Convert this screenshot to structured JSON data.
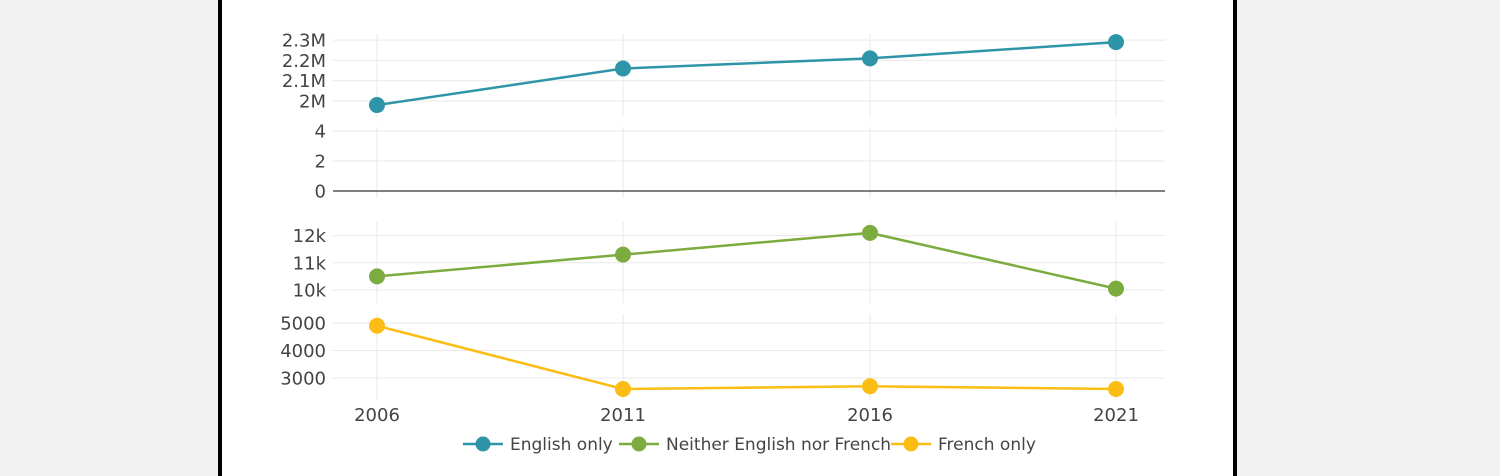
{
  "colors": {
    "english": "#2e95a8",
    "neither": "#7cab3f",
    "french": "#fbbd13",
    "grid": "#e9e9e9",
    "axis_text": "#444444",
    "zero_line": "#333333",
    "background": "#f2f2f2",
    "card": "#ffffff"
  },
  "chart_data": {
    "type": "line",
    "layout": "stacked-panels-shared-x",
    "x": [
      "2006",
      "2011",
      "2016",
      "2021"
    ],
    "grid": true,
    "legend_position": "bottom",
    "panels": [
      {
        "series": "English only",
        "color_key": "english",
        "ylim": [
          1980000,
          2330000
        ],
        "ticks": [
          2000000,
          2100000,
          2200000,
          2300000
        ],
        "tick_labels": [
          "2M",
          "2.1M",
          "2.2M",
          "2.3M"
        ],
        "values": [
          1980000,
          2160000,
          2210000,
          2290000
        ]
      },
      {
        "series": "",
        "color_key": "",
        "ylim": [
          0,
          4
        ],
        "ticks": [
          0,
          2,
          4
        ],
        "tick_labels": [
          "0",
          "2",
          "4"
        ],
        "values": [],
        "zero_line": true
      },
      {
        "series": "Neither English nor French",
        "color_key": "neither",
        "ylim": [
          9950000,
          12200000
        ],
        "ylim_scale": 0.001,
        "ticks": [
          10000,
          11000,
          12000
        ],
        "tick_labels": [
          "10k",
          "11k",
          "12k"
        ],
        "values": [
          10500,
          11300,
          12100,
          10050
        ]
      },
      {
        "series": "French only",
        "color_key": "french",
        "ylim": [
          2500,
          5100
        ],
        "ticks": [
          3000,
          4000,
          5000
        ],
        "tick_labels": [
          "3000",
          "4000",
          "5000"
        ],
        "values": [
          4900,
          2600,
          2700,
          2600
        ]
      }
    ],
    "legend": [
      {
        "name": "English only",
        "color_key": "english"
      },
      {
        "name": "Neither English nor French",
        "color_key": "neither"
      },
      {
        "name": "French only",
        "color_key": "french"
      }
    ]
  }
}
